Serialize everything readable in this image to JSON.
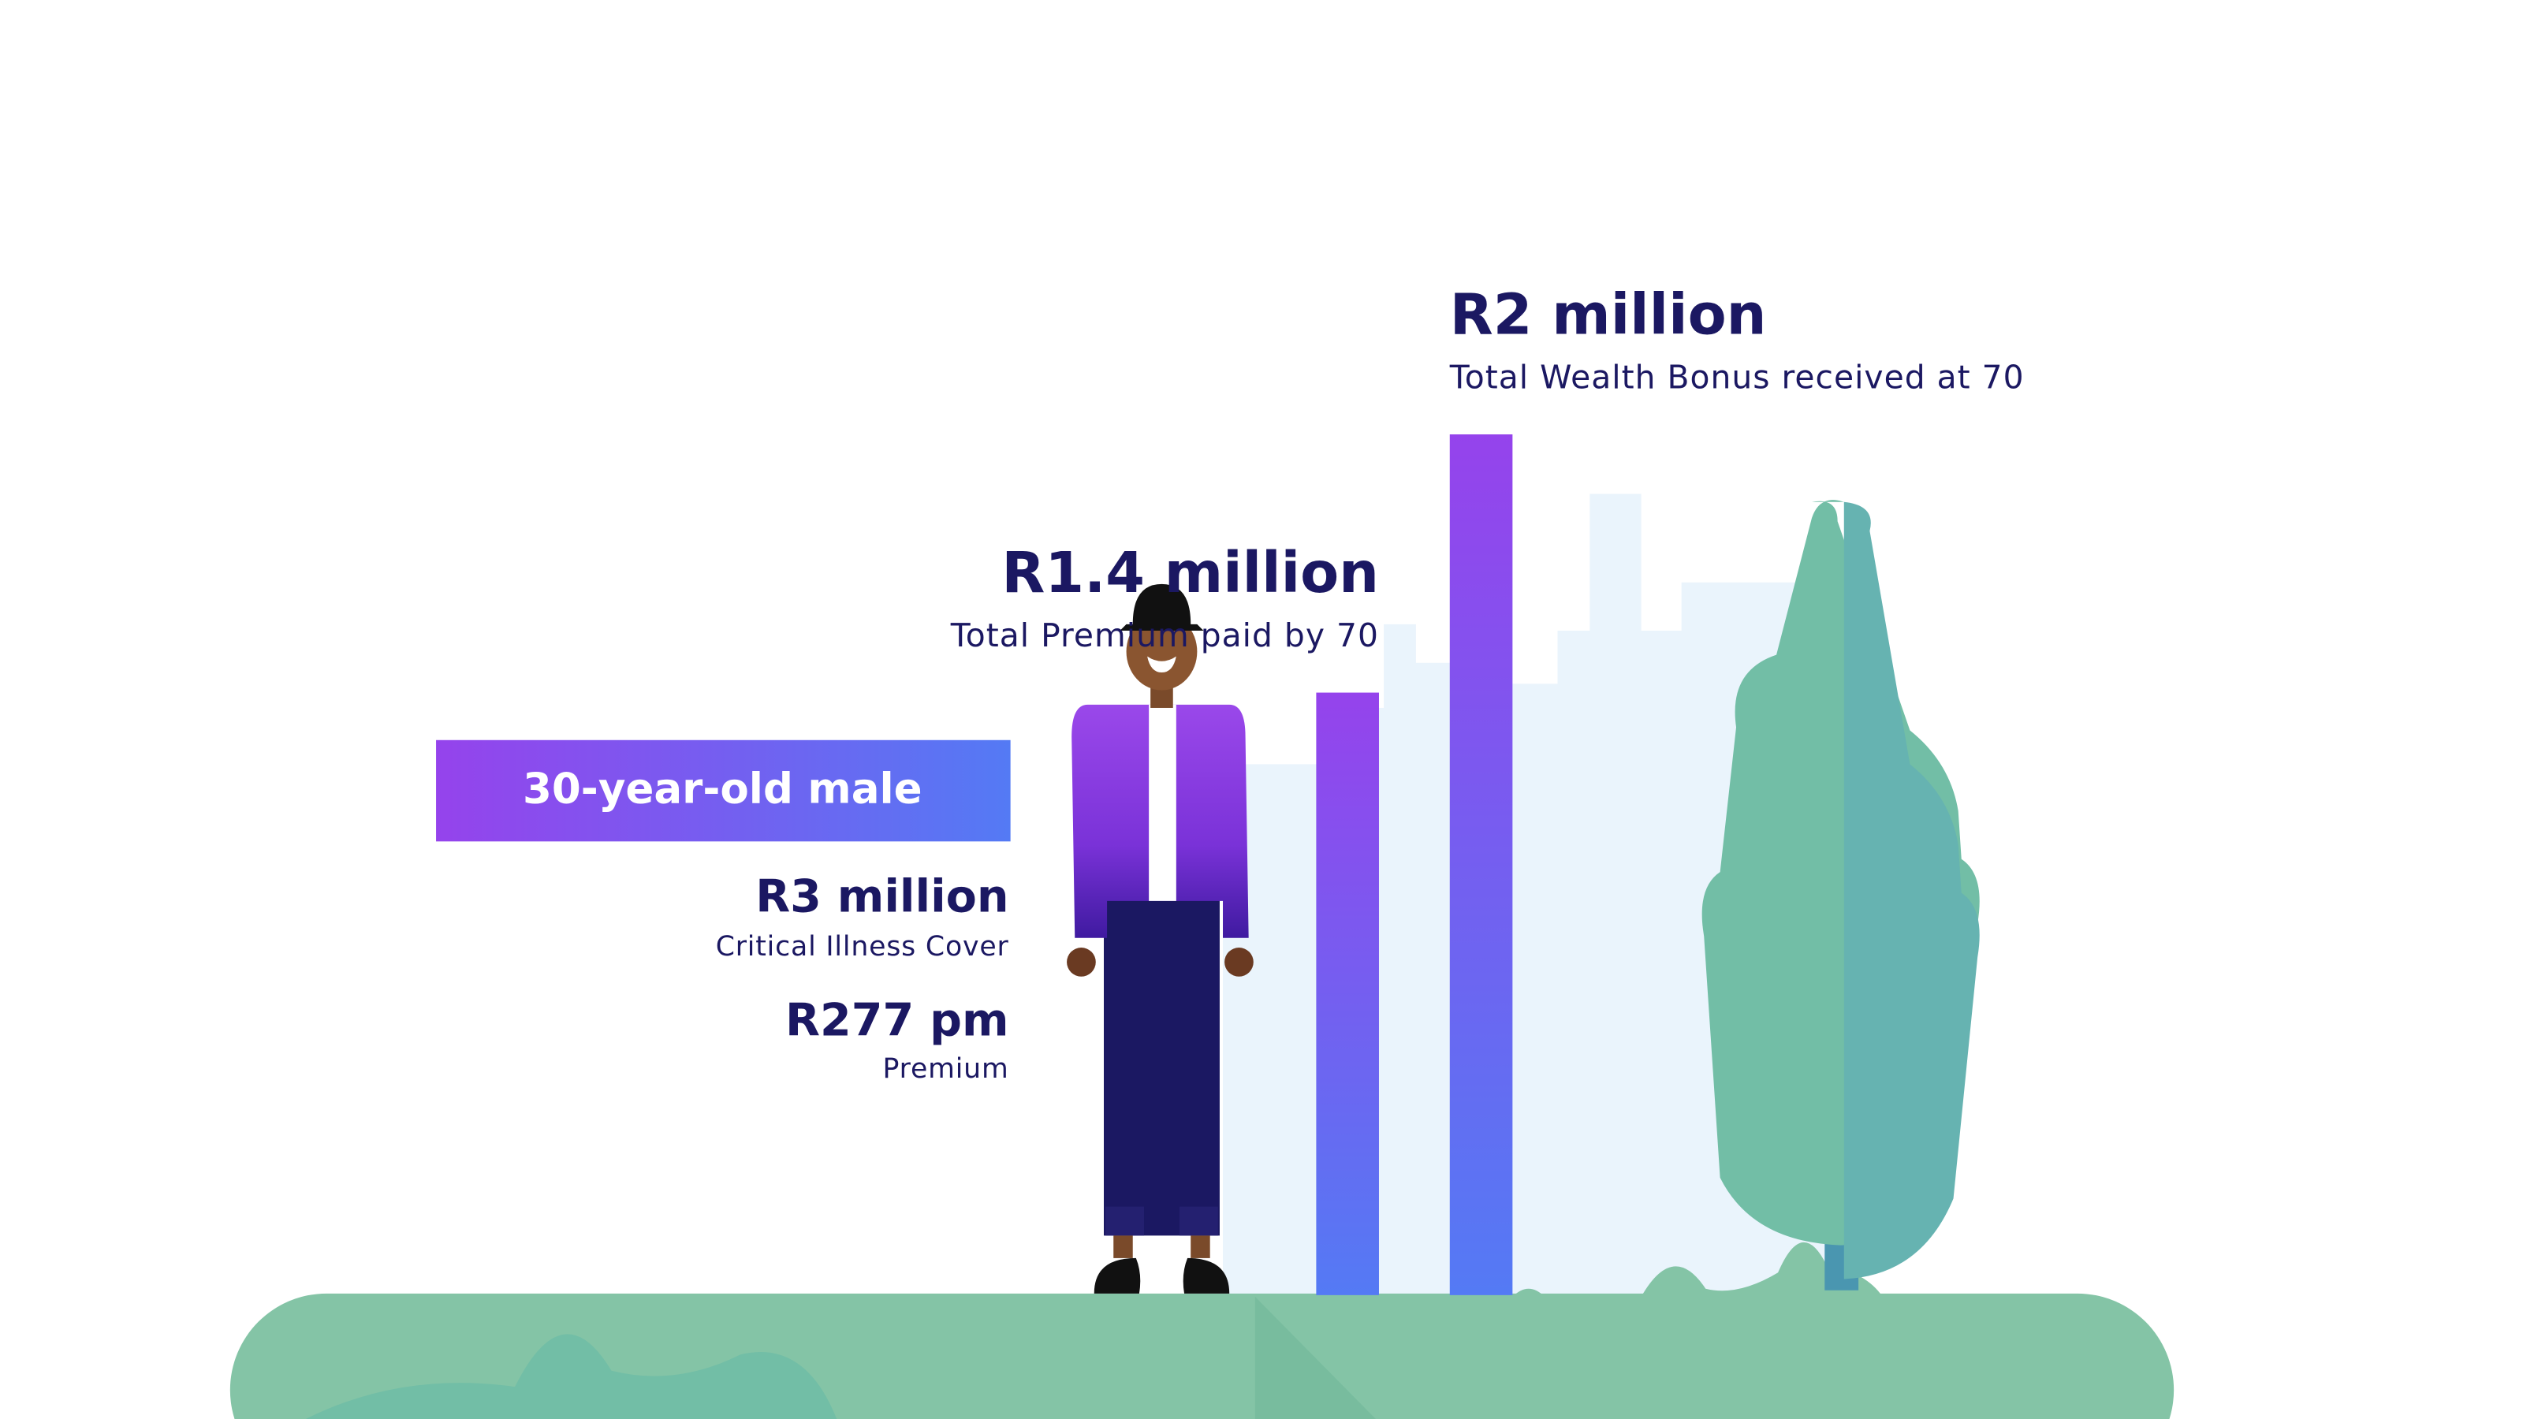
{
  "profile": {
    "badge": "30-year-old male",
    "cover": {
      "amount": "R3 million",
      "label": "Critical Illness Cover"
    },
    "premium": {
      "amount": "R277 pm",
      "label": "Premium"
    }
  },
  "chart_data": {
    "type": "bar",
    "categories": [
      "Total Premium paid by 70",
      "Total Wealth Bonus received at 70"
    ],
    "values": [
      1400000,
      2000000
    ],
    "value_labels": [
      "R1.4 million",
      "R2 million"
    ]
  }
}
